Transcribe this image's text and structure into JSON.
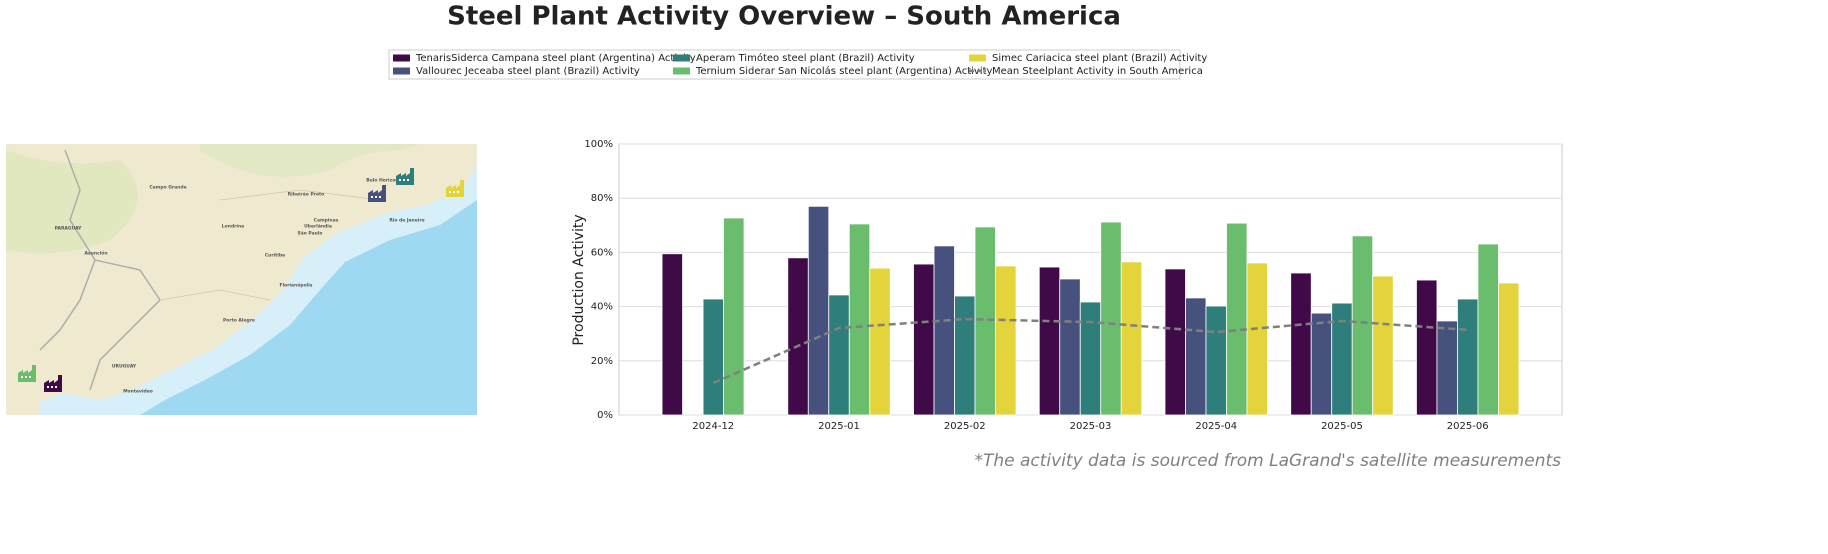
{
  "chart_data": {
    "type": "bar",
    "title": "Steel Plant Activity Overview – South America",
    "y_label": "Production Activity",
    "annotation": "*The activity data is sourced from LaGrand's satellite measurements",
    "categories": [
      "2024-12",
      "2025-01",
      "2025-02",
      "2025-03",
      "2025-04",
      "2025-05",
      "2025-06"
    ],
    "ylim": [
      0,
      100
    ],
    "yticks": [
      {
        "value": 0,
        "label": "0%"
      },
      {
        "value": 20,
        "label": "20%"
      },
      {
        "value": 40,
        "label": "40%"
      },
      {
        "value": 60,
        "label": "60%"
      },
      {
        "value": 80,
        "label": "80%"
      },
      {
        "value": 100,
        "label": "100%"
      }
    ],
    "grid": true,
    "series": [
      {
        "name": "TenarisSiderca Campana steel plant (Argentina) Activity",
        "color": "#3f0a47",
        "values": [
          59.5,
          58,
          55.7,
          54.6,
          53.9,
          52.4,
          49.8
        ]
      },
      {
        "name": "Vallourec Jeceaba steel plant (Brazil) Activity",
        "color": "#46527d",
        "values": [
          null,
          77,
          62.4,
          50.2,
          43.2,
          37.6,
          34.7
        ]
      },
      {
        "name": "Aperam Timóteo steel plant (Brazil) Activity",
        "color": "#2e7f7b",
        "values": [
          42.8,
          44.3,
          43.9,
          41.7,
          40.2,
          41.3,
          42.8
        ]
      },
      {
        "name": "Ternium Siderar San Nicolás steel plant (Argentina) Activity",
        "color": "#69bd6c",
        "values": [
          72.7,
          70.5,
          69.4,
          71.2,
          70.8,
          66.1,
          63.1
        ]
      },
      {
        "name": "Simec Cariacica steel plant (Brazil) Activity",
        "color": "#e3d43c",
        "values": [
          null,
          54.2,
          55,
          56.5,
          56.1,
          51.3,
          48.7
        ]
      },
      {
        "name": "Mean Steelplant Activity in South America",
        "type": "line",
        "linestyle": "dashed",
        "color": "#808080",
        "values": [
          11.8,
          32.1,
          35.4,
          34.3,
          30.6,
          34.7,
          31.4
        ]
      }
    ]
  },
  "map": {
    "labels": [
      "PARAGUAY",
      "URUGUAY",
      "Asunción",
      "Porto Alegre",
      "Curitiba",
      "São Paulo",
      "Campinas",
      "Rio de Janeiro",
      "Belo Horizonte",
      "Montevideo",
      "Campo Grande",
      "Londrina",
      "Florianópolis",
      "Uberlândia",
      "Ribeirão Preto"
    ]
  }
}
